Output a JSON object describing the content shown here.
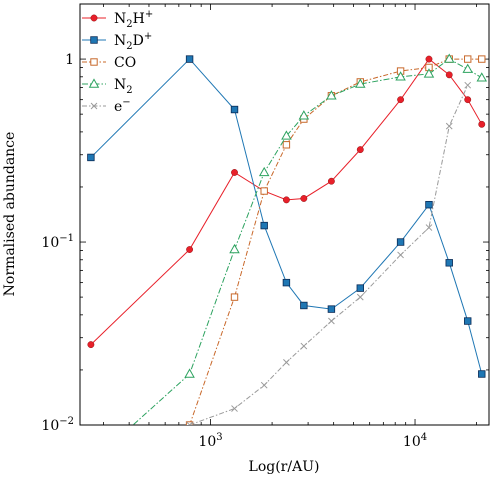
{
  "chart_data": {
    "type": "line",
    "title": "",
    "xlabel": "Log(r/AU)",
    "ylabel": "Normalised abundance",
    "xscale": "log",
    "yscale": "log",
    "xlim": [
      230,
      23000
    ],
    "ylim": [
      0.01,
      2.0
    ],
    "x_ticks": [
      {
        "value": 1000,
        "base": "10",
        "exp": "3"
      },
      {
        "value": 10000,
        "base": "10",
        "exp": "4"
      }
    ],
    "y_ticks": [
      {
        "value": 0.01,
        "base": "10",
        "exp": "−2"
      },
      {
        "value": 0.1,
        "base": "10",
        "exp": "−1"
      },
      {
        "value": 1,
        "text": "1"
      }
    ],
    "grid": false,
    "legend_position": "top-left",
    "series": [
      {
        "name": "N2H+",
        "label_main": "N",
        "label_sub": "2",
        "label_tail": "H",
        "label_sup": "+",
        "color": "#e8202a",
        "marker": "circle",
        "dash": "",
        "x": [
          260,
          790,
          1310,
          1830,
          2350,
          2860,
          3900,
          5400,
          8500,
          11700,
          14700,
          18100,
          21200
        ],
        "y": [
          0.0275,
          0.091,
          0.24,
          0.19,
          0.17,
          0.173,
          0.215,
          0.32,
          0.6,
          1.0,
          0.82,
          0.6,
          0.44
        ]
      },
      {
        "name": "N2D+",
        "label_main": "N",
        "label_sub": "2",
        "label_tail": "D",
        "label_sup": "+",
        "color": "#1f77b4",
        "marker": "square",
        "dash": "",
        "x": [
          260,
          790,
          1310,
          1830,
          2350,
          2860,
          3900,
          5400,
          8500,
          11700,
          14700,
          18100,
          21200
        ],
        "y": [
          0.29,
          1.0,
          0.53,
          0.123,
          0.06,
          0.045,
          0.043,
          0.056,
          0.1,
          0.16,
          0.077,
          0.037,
          0.019
        ]
      },
      {
        "name": "CO",
        "label_main": "CO",
        "label_sub": "",
        "label_tail": "",
        "label_sup": "",
        "color": "#c8682a",
        "marker": "open-square",
        "dash": "5,2,1.5,2",
        "x": [
          790,
          1310,
          1830,
          2350,
          2860,
          3900,
          5400,
          8500,
          11700,
          14700,
          18100,
          21200
        ],
        "y": [
          0.01,
          0.05,
          0.19,
          0.34,
          0.47,
          0.63,
          0.75,
          0.86,
          0.9,
          1.0,
          1.0,
          1.0
        ]
      },
      {
        "name": "N2",
        "label_main": "N",
        "label_sub": "2",
        "label_tail": "",
        "label_sup": "",
        "color": "#2ca25f",
        "marker": "triangle",
        "dash": "6,2,1.5,2",
        "x": [
          260,
          790,
          1310,
          1830,
          2350,
          2860,
          3900,
          5400,
          8500,
          11700,
          14700,
          18100,
          21200
        ],
        "y": [
          0.0062,
          0.019,
          0.091,
          0.24,
          0.38,
          0.49,
          0.63,
          0.73,
          0.8,
          0.83,
          1.0,
          0.88,
          0.79
        ]
      },
      {
        "name": "e−",
        "label_main": "e",
        "label_sub": "",
        "label_tail": "",
        "label_sup": "−",
        "color": "#9a9a9a",
        "marker": "x",
        "dash": "5,2,1.5,2",
        "x": [
          790,
          1310,
          1830,
          2350,
          2860,
          3900,
          5400,
          8500,
          11700,
          14700,
          18100
        ],
        "y": [
          0.01,
          0.0123,
          0.0165,
          0.022,
          0.027,
          0.037,
          0.05,
          0.085,
          0.12,
          0.43,
          0.72
        ]
      }
    ]
  }
}
